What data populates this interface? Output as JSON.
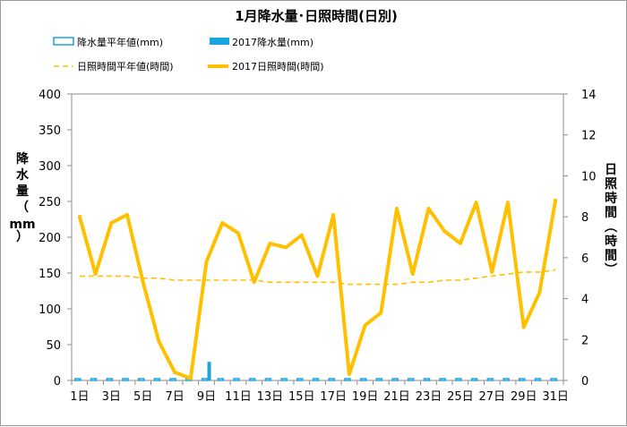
{
  "chart_data": {
    "type": "bar+line",
    "title": "1月降水量･日照時間(日別)",
    "categories": [
      "1日",
      "2日",
      "3日",
      "4日",
      "5日",
      "6日",
      "7日",
      "8日",
      "9日",
      "10日",
      "11日",
      "12日",
      "13日",
      "14日",
      "15日",
      "16日",
      "17日",
      "18日",
      "19日",
      "20日",
      "21日",
      "22日",
      "23日",
      "24日",
      "25日",
      "26日",
      "27日",
      "28日",
      "29日",
      "30日",
      "31日"
    ],
    "x_tick_labels": [
      "1日",
      "3日",
      "5日",
      "7日",
      "9日",
      "11日",
      "13日",
      "15日",
      "17日",
      "19日",
      "21日",
      "23日",
      "25日",
      "27日",
      "29日",
      "31日"
    ],
    "left_axis": {
      "label": "降水量（mm）",
      "ylim": [
        0,
        400
      ],
      "ticks": [
        0,
        50,
        100,
        150,
        200,
        250,
        300,
        350,
        400
      ]
    },
    "right_axis": {
      "label": "日照時間(時間)",
      "ylim": [
        0,
        14
      ],
      "ticks": [
        0,
        2,
        4,
        6,
        8,
        10,
        12,
        14
      ]
    },
    "grid": false,
    "legend_position": "top",
    "series": [
      {
        "name": "降水量平年値(mm)",
        "kind": "bar-outline",
        "axis": "left",
        "color": "#1aa3dd",
        "values": [
          1.5,
          1.5,
          1.5,
          1.5,
          1.5,
          1.5,
          1.5,
          1.5,
          1.5,
          1.5,
          1.5,
          1.5,
          1.5,
          1.5,
          1.5,
          1.5,
          1.5,
          1.5,
          1.5,
          1.5,
          1.5,
          1.5,
          1.5,
          1.5,
          1.5,
          1.5,
          1.5,
          1.5,
          1.5,
          1.5,
          1.5
        ]
      },
      {
        "name": "2017降水量(mm)",
        "kind": "bar",
        "axis": "left",
        "color": "#1aa3dd",
        "values": [
          0,
          0,
          0,
          0,
          0,
          0,
          0,
          0,
          26,
          0,
          0,
          0,
          0,
          0,
          0,
          0,
          0,
          0,
          0,
          0,
          0,
          0,
          0,
          0,
          0,
          0,
          0,
          0,
          0,
          0,
          0
        ]
      },
      {
        "name": "日照時間平年値(時間)",
        "kind": "line-dashed",
        "axis": "right",
        "color": "#ffc000",
        "values": [
          5.1,
          5.1,
          5.1,
          5.1,
          5.0,
          5.0,
          4.9,
          4.9,
          4.9,
          4.9,
          4.9,
          4.9,
          4.8,
          4.8,
          4.8,
          4.8,
          4.8,
          4.7,
          4.7,
          4.7,
          4.7,
          4.8,
          4.8,
          4.9,
          4.9,
          5.0,
          5.1,
          5.2,
          5.3,
          5.3,
          5.4
        ]
      },
      {
        "name": "2017日照時間(時間)",
        "kind": "line",
        "axis": "right",
        "color": "#ffc000",
        "values": [
          8.0,
          5.2,
          7.7,
          8.1,
          4.8,
          1.9,
          0.4,
          0.1,
          5.8,
          7.7,
          7.2,
          4.8,
          6.7,
          6.5,
          7.1,
          5.1,
          8.1,
          0.3,
          2.7,
          3.3,
          8.4,
          5.2,
          8.4,
          7.3,
          6.7,
          8.7,
          5.3,
          8.7,
          2.6,
          4.3,
          8.8
        ]
      }
    ]
  }
}
